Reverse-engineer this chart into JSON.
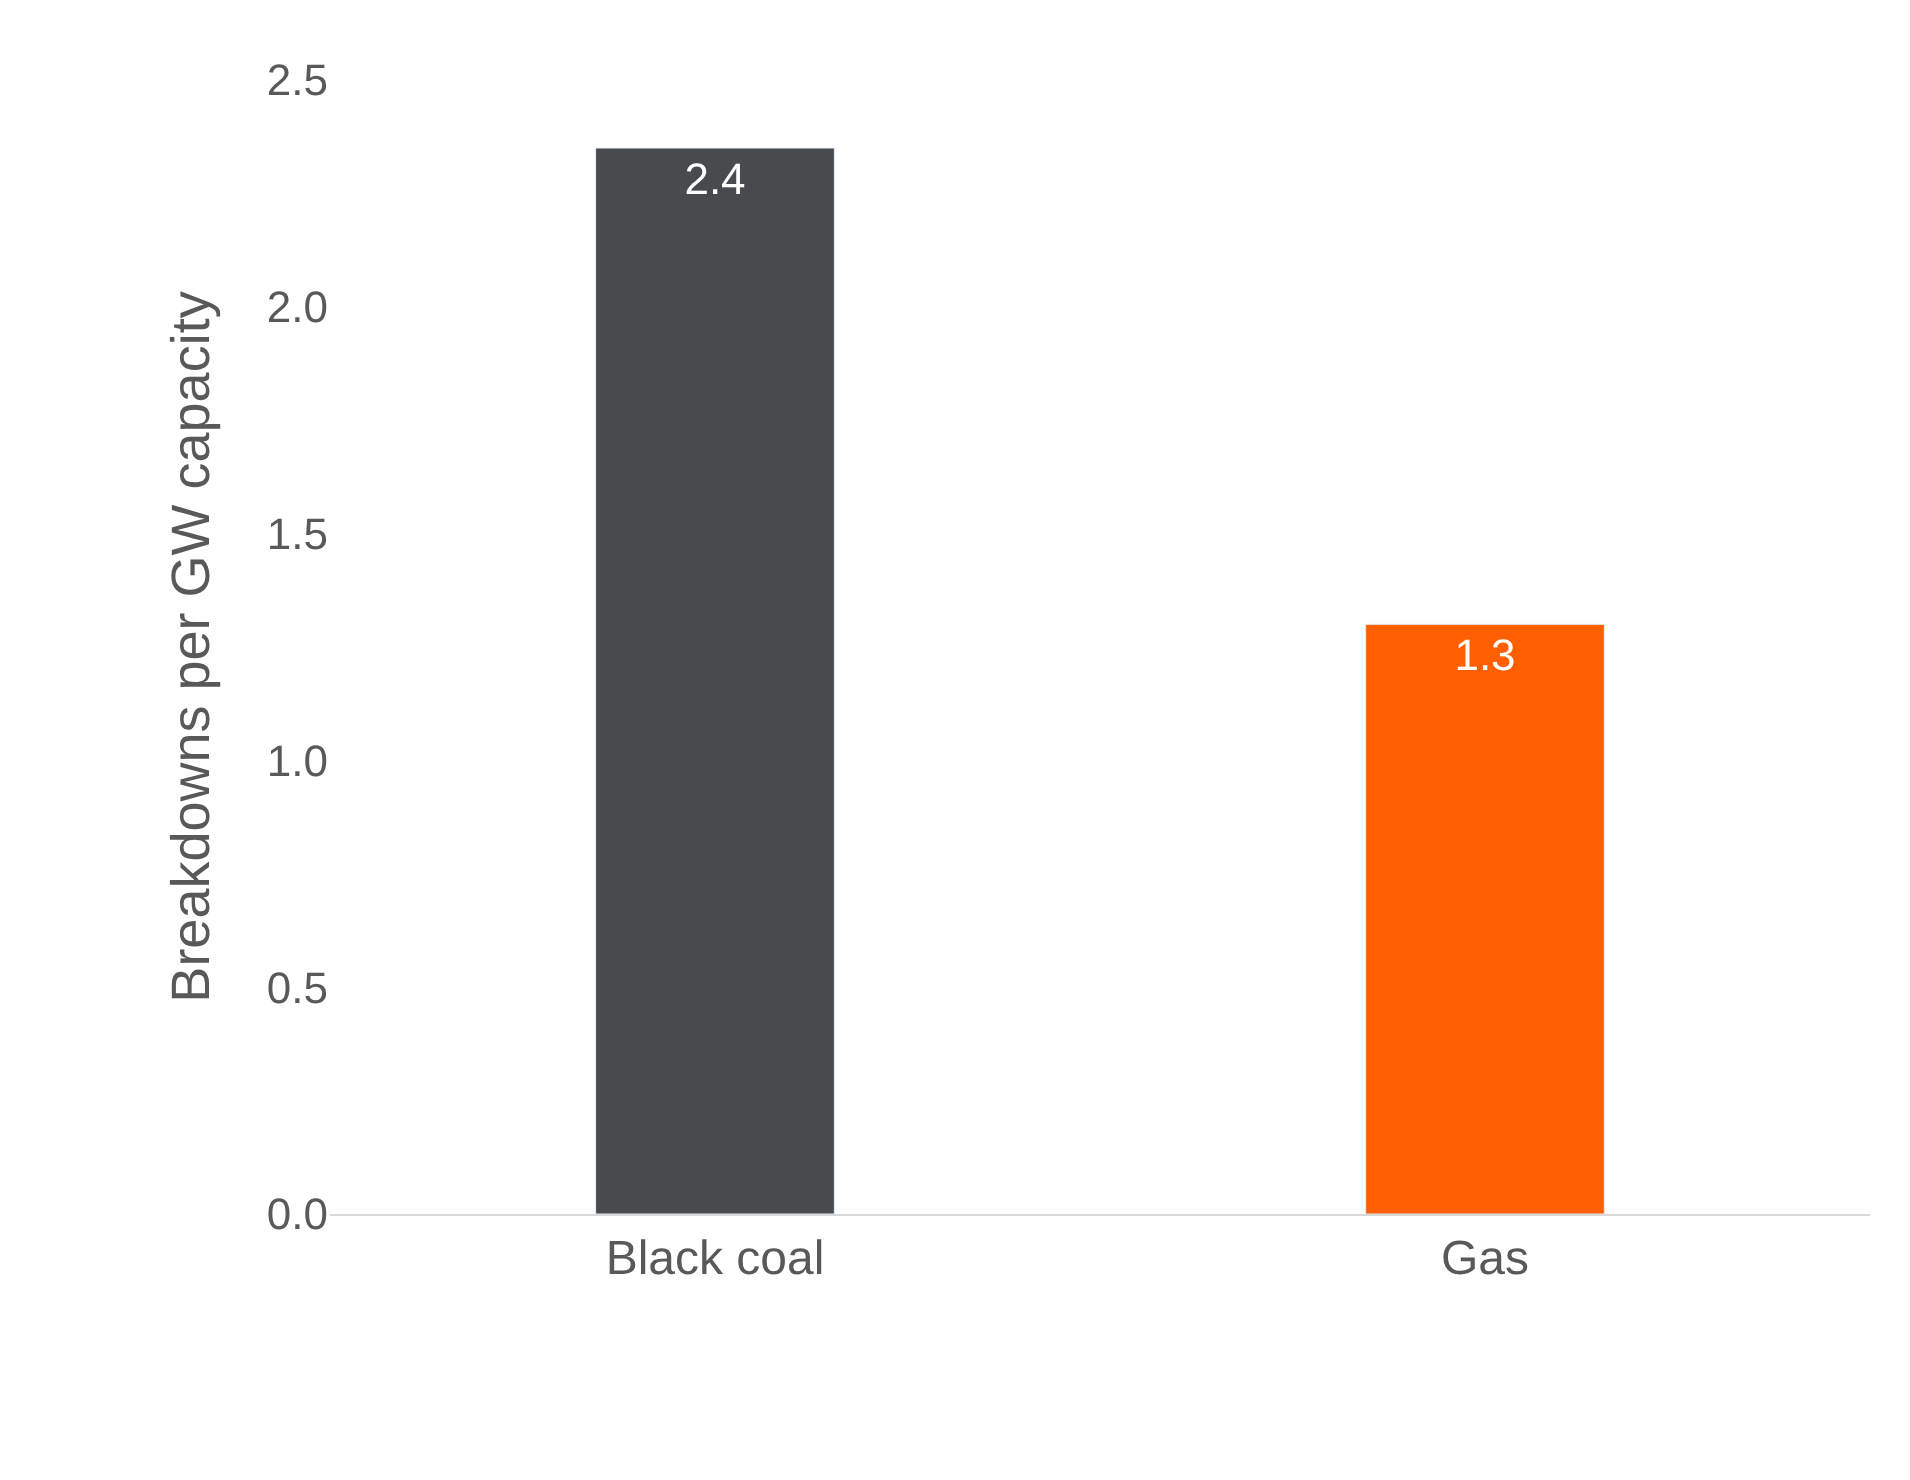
{
  "chart_data": {
    "type": "bar",
    "ylabel": "Breakdowns per GW capacity",
    "categories": [
      "Black coal",
      "Gas"
    ],
    "values": [
      2.35,
      1.3
    ],
    "value_labels": [
      "2.4",
      "1.3"
    ],
    "colors": [
      "#474b4e",
      "#ff5f00"
    ],
    "ylim": [
      0,
      2.5
    ],
    "yticks": [
      {
        "value": 0,
        "label": "0.0"
      },
      {
        "value": 0.5,
        "label": "0.5"
      },
      {
        "value": 1,
        "label": "1.0"
      },
      {
        "value": 1.5,
        "label": "1.5"
      },
      {
        "value": 2,
        "label": "2.0"
      },
      {
        "value": 2.5,
        "label": "2.5"
      }
    ],
    "legend": false
  }
}
